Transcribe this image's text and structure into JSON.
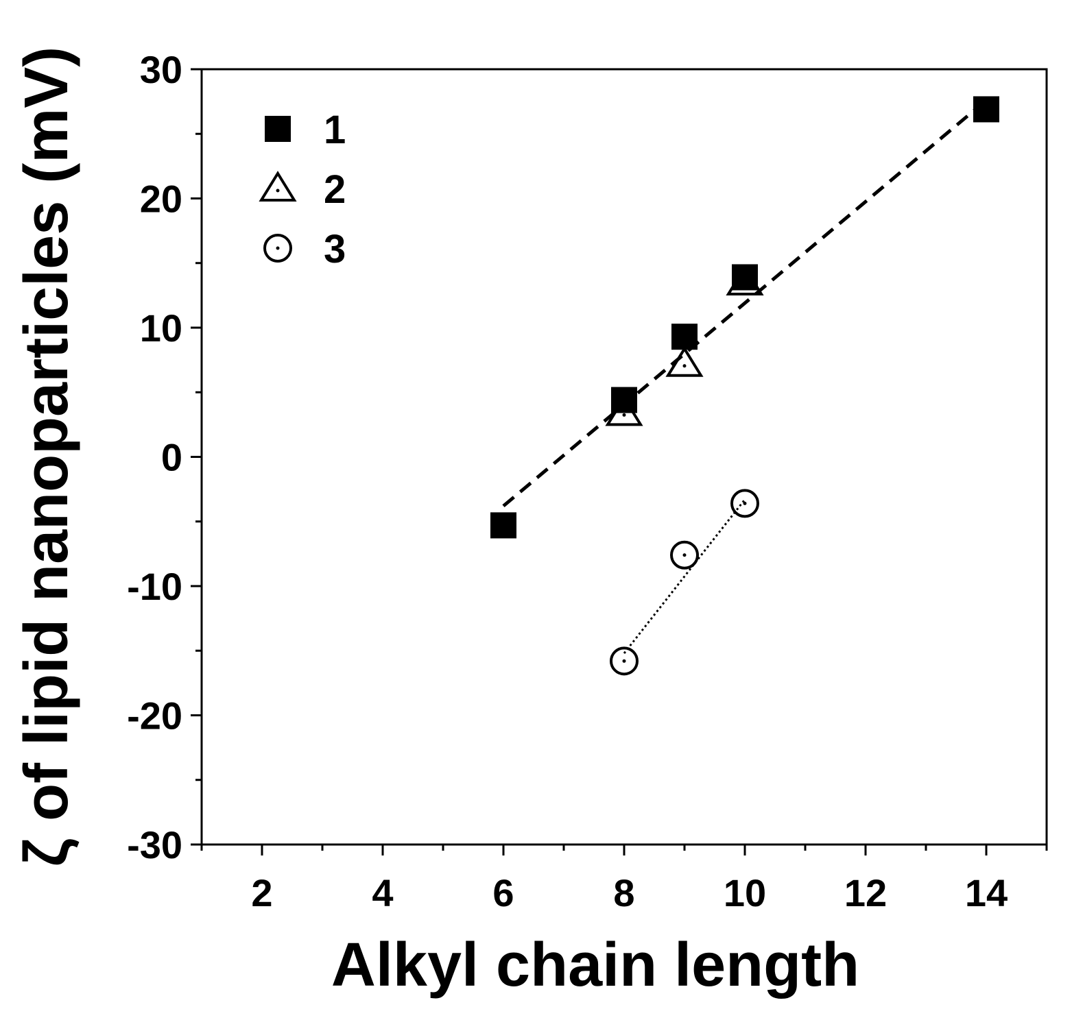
{
  "chart_data": {
    "type": "scatter",
    "xlabel": "Alkyl chain length",
    "ylabel": "ζ of lipid nanoparticles (mV)",
    "xlim": [
      1,
      15
    ],
    "ylim": [
      -30,
      30
    ],
    "x_ticks": [
      2,
      4,
      6,
      8,
      10,
      12,
      14
    ],
    "y_ticks": [
      -30,
      -20,
      -10,
      0,
      10,
      20,
      30
    ],
    "grid": false,
    "legend_position": "top-left",
    "series": [
      {
        "name": "1",
        "marker": "filled-square",
        "points": [
          [
            6,
            -5.3
          ],
          [
            8,
            4.4
          ],
          [
            9,
            9.3
          ],
          [
            10,
            13.9
          ],
          [
            14,
            26.9
          ]
        ]
      },
      {
        "name": "2",
        "marker": "open-triangle",
        "points": [
          [
            8,
            3.4
          ],
          [
            9,
            7.2
          ],
          [
            10,
            13.5
          ]
        ]
      },
      {
        "name": "3",
        "marker": "open-circle-dot",
        "points": [
          [
            8,
            -15.8
          ],
          [
            9,
            -7.6
          ],
          [
            10,
            -3.6
          ]
        ]
      }
    ],
    "fit_lines": [
      {
        "style": "dashed",
        "from": [
          6,
          -3.8
        ],
        "to": [
          14,
          27.6
        ]
      },
      {
        "style": "dotted",
        "from": [
          8,
          -15.2
        ],
        "to": [
          10,
          -3.3
        ]
      }
    ]
  }
}
